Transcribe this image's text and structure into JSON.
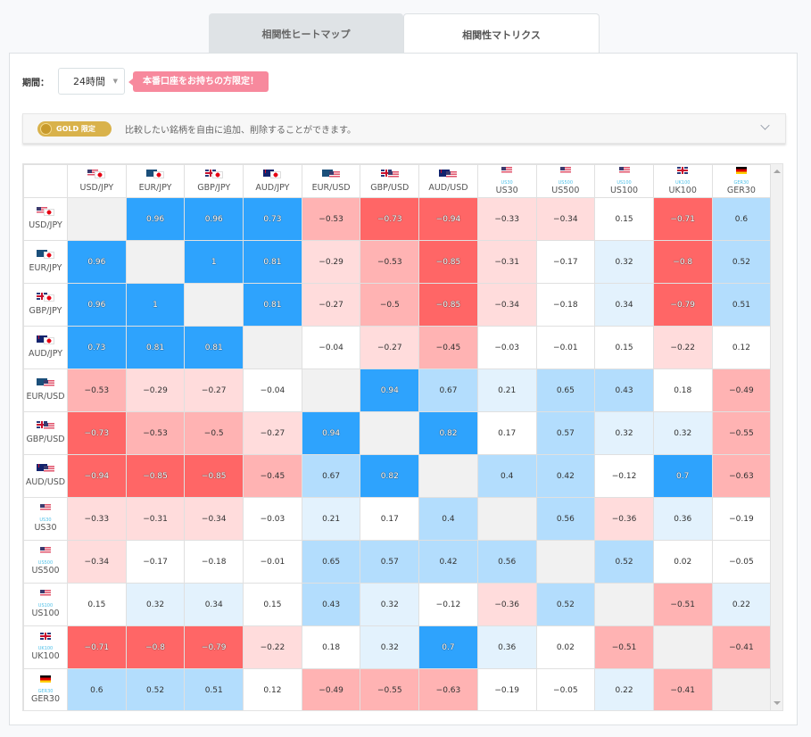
{
  "tabs": [
    {
      "label": "相関性ヒートマップ",
      "active": false
    },
    {
      "label": "相関性マトリクス",
      "active": true
    }
  ],
  "period": {
    "label": "期間：",
    "selected": "24時間",
    "promo_tag": "本番口座をお持ちの方限定！"
  },
  "gold_bar": {
    "badge": "GOLD 限定",
    "text": "比較したい銘柄を自由に追加、削除することができます。"
  },
  "colors": {
    "strong_positive": "#2ea3fd",
    "medium_positive": "#b3ddfd",
    "light_positive": "#e3f2fd",
    "neutral": "#ffffff",
    "light_negative": "#ffdcdc",
    "medium_negative": "#ffb3b3",
    "strong_negative": "#ff6666",
    "diagonal": "#f1f1f1",
    "promo": "#f7899d",
    "gold": "#d9b24b"
  },
  "instruments": [
    {
      "label": "USD/JPY",
      "flags": [
        "us",
        "jp"
      ],
      "index_label": ""
    },
    {
      "label": "EUR/JPY",
      "flags": [
        "eu",
        "jp"
      ],
      "index_label": ""
    },
    {
      "label": "GBP/JPY",
      "flags": [
        "gb",
        "jp"
      ],
      "index_label": ""
    },
    {
      "label": "AUD/JPY",
      "flags": [
        "au",
        "jp"
      ],
      "index_label": ""
    },
    {
      "label": "EUR/USD",
      "flags": [
        "eu",
        "us"
      ],
      "index_label": ""
    },
    {
      "label": "GBP/USD",
      "flags": [
        "gb",
        "us"
      ],
      "index_label": ""
    },
    {
      "label": "AUD/USD",
      "flags": [
        "au",
        "us"
      ],
      "index_label": ""
    },
    {
      "label": "US30",
      "flags": [
        "us"
      ],
      "index_label": "US30"
    },
    {
      "label": "US500",
      "flags": [
        "us"
      ],
      "index_label": "US500"
    },
    {
      "label": "US100",
      "flags": [
        "us"
      ],
      "index_label": "US100"
    },
    {
      "label": "UK100",
      "flags": [
        "gb"
      ],
      "index_label": "UK100"
    },
    {
      "label": "GER30",
      "flags": [
        "de"
      ],
      "index_label": "GER30"
    }
  ],
  "matrix": [
    [
      null,
      "0.96",
      "0.96",
      "0.73",
      "-0.53",
      "-0.73",
      "-0.94",
      "-0.33",
      "-0.34",
      "0.15",
      "-0.71",
      "0.6"
    ],
    [
      "0.96",
      null,
      "1",
      "0.81",
      "-0.29",
      "-0.53",
      "-0.85",
      "-0.31",
      "-0.17",
      "0.32",
      "-0.8",
      "0.52"
    ],
    [
      "0.96",
      "1",
      null,
      "0.81",
      "-0.27",
      "-0.5",
      "-0.85",
      "-0.34",
      "-0.18",
      "0.34",
      "-0.79",
      "0.51"
    ],
    [
      "0.73",
      "0.81",
      "0.81",
      null,
      "-0.04",
      "-0.27",
      "-0.45",
      "-0.03",
      "-0.01",
      "0.15",
      "-0.22",
      "0.12"
    ],
    [
      "-0.53",
      "-0.29",
      "-0.27",
      "-0.04",
      null,
      "0.94",
      "0.67",
      "0.21",
      "0.65",
      "0.43",
      "0.18",
      "-0.49"
    ],
    [
      "-0.73",
      "-0.53",
      "-0.5",
      "-0.27",
      "0.94",
      null,
      "0.82",
      "0.17",
      "0.57",
      "0.32",
      "0.32",
      "-0.55"
    ],
    [
      "-0.94",
      "-0.85",
      "-0.85",
      "-0.45",
      "0.67",
      "0.82",
      null,
      "0.4",
      "0.42",
      "-0.12",
      "0.7",
      "-0.63"
    ],
    [
      "-0.33",
      "-0.31",
      "-0.34",
      "-0.03",
      "0.21",
      "0.17",
      "0.4",
      null,
      "0.56",
      "-0.36",
      "0.36",
      "-0.19"
    ],
    [
      "-0.34",
      "-0.17",
      "-0.18",
      "-0.01",
      "0.65",
      "0.57",
      "0.42",
      "0.56",
      null,
      "0.52",
      "0.02",
      "-0.05"
    ],
    [
      "0.15",
      "0.32",
      "0.34",
      "0.15",
      "0.43",
      "0.32",
      "-0.12",
      "-0.36",
      "0.52",
      null,
      "-0.51",
      "0.22"
    ],
    [
      "-0.71",
      "-0.8",
      "-0.79",
      "-0.22",
      "0.18",
      "0.32",
      "0.7",
      "0.36",
      "0.02",
      "-0.51",
      null,
      "-0.41"
    ],
    [
      "0.6",
      "0.52",
      "0.51",
      "0.12",
      "-0.49",
      "-0.55",
      "-0.63",
      "-0.19",
      "-0.05",
      "0.22",
      "-0.41",
      null
    ]
  ]
}
